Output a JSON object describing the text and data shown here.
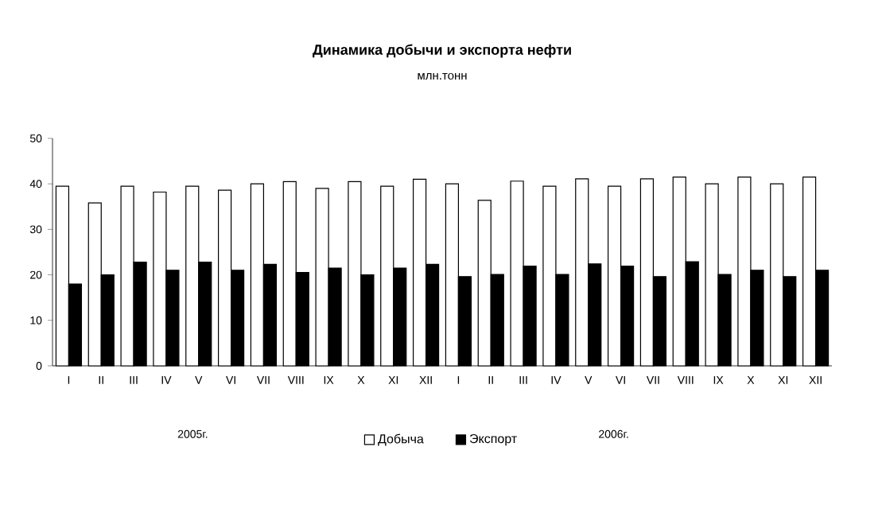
{
  "chart_data": {
    "type": "bar",
    "title": "Динамика добычи и экспорта нефти",
    "subtitle": "млн.тонн",
    "categories": [
      "I",
      "II",
      "III",
      "IV",
      "V",
      "VI",
      "VII",
      "VIII",
      "IX",
      "X",
      "XI",
      "XII",
      "I",
      "II",
      "III",
      "IV",
      "V",
      "VI",
      "VII",
      "VIII",
      "IX",
      "X",
      "XI",
      "XII"
    ],
    "series": [
      {
        "name": "Добыча",
        "color": "#ffffff",
        "values": [
          39.5,
          35.8,
          39.5,
          38.2,
          39.5,
          38.6,
          40.0,
          40.5,
          39.0,
          40.5,
          39.5,
          41.0,
          40.0,
          36.4,
          40.6,
          39.5,
          41.1,
          39.5,
          41.1,
          41.5,
          40.0,
          41.5,
          40.0,
          41.5
        ]
      },
      {
        "name": "Экспорт",
        "color": "#000000",
        "values": [
          18.0,
          20.0,
          22.8,
          21.0,
          22.8,
          21.0,
          22.3,
          20.5,
          21.5,
          20.0,
          21.5,
          22.3,
          19.6,
          20.1,
          21.9,
          20.1,
          22.4,
          21.9,
          19.6,
          22.9,
          20.1,
          21.0,
          19.6,
          21.0
        ]
      }
    ],
    "ylim": [
      0,
      50
    ],
    "yticks": [
      0,
      10,
      20,
      30,
      40,
      50
    ],
    "legend": "bottom",
    "annotations": [
      "2005г.",
      "2006г."
    ]
  }
}
